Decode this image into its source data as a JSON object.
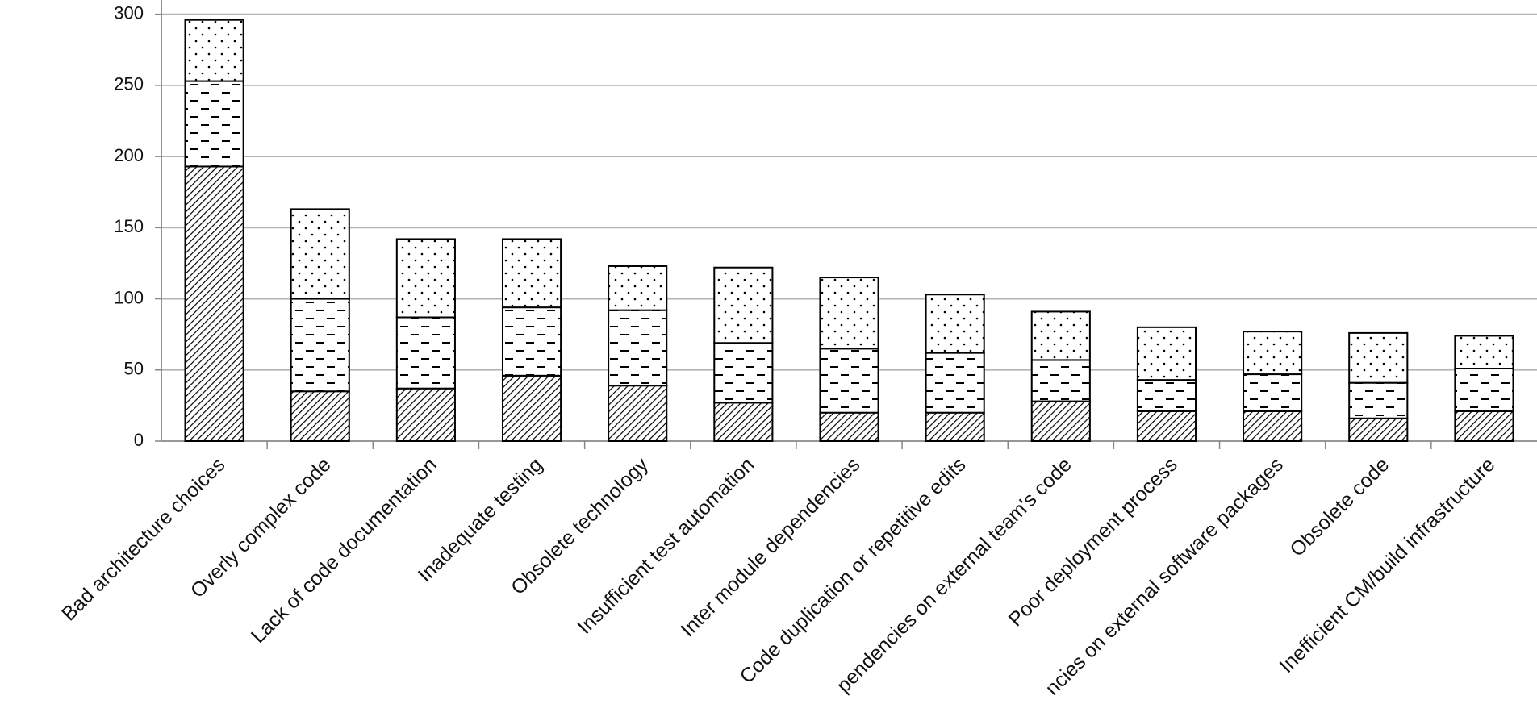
{
  "chart_data": {
    "type": "stacked-bar",
    "categories": [
      "Bad architecture choices",
      "Overly complex code",
      "Lack of code documentation",
      "Inadequate testing",
      "Obsolete technology",
      "Insufficient test automation",
      "Inter module dependencies",
      "Code duplication or repetitive edits",
      "pendencies on external team's code",
      "Poor deployment process",
      "ncies on external software packages",
      "Obsolete code",
      "Inefficient CM/build infrastructure"
    ],
    "series": [
      {
        "pattern": "hatch",
        "values": [
          193,
          35,
          37,
          46,
          39,
          27,
          20,
          20,
          28,
          21,
          21,
          16,
          21
        ]
      },
      {
        "pattern": "dash",
        "values": [
          60,
          65,
          50,
          48,
          53,
          42,
          45,
          42,
          29,
          22,
          26,
          25,
          30
        ]
      },
      {
        "pattern": "dot",
        "values": [
          43,
          63,
          55,
          48,
          31,
          53,
          50,
          41,
          34,
          37,
          30,
          35,
          23
        ]
      }
    ],
    "ylim": [
      0,
      310
    ],
    "yticks": [
      0,
      50,
      100,
      150,
      200,
      250,
      300
    ],
    "grid": true
  }
}
